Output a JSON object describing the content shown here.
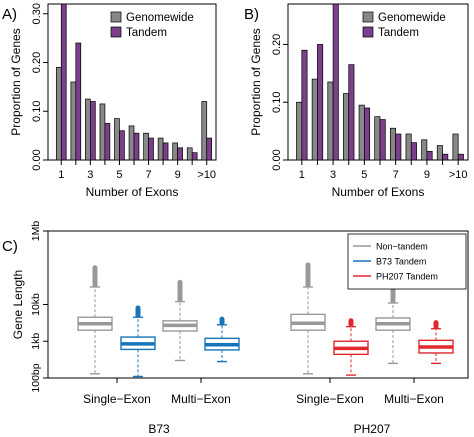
{
  "chart_data": [
    {
      "type": "bar",
      "panel_label": "A)",
      "xlabel": "Number of Exons",
      "ylabel": "Proportion of Genes",
      "ylim": [
        0,
        0.32
      ],
      "yticks": [
        "0.00",
        "0.10",
        "0.20",
        "0.30"
      ],
      "categories": [
        "1",
        "2",
        "3",
        "4",
        "5",
        "6",
        "7",
        "8",
        "9",
        "10",
        ">10"
      ],
      "xtick_labels": [
        "1",
        "3",
        "5",
        "7",
        "9",
        ">10"
      ],
      "legend": "top-right",
      "series": [
        {
          "name": "Genomewide",
          "color": "#888888",
          "values": [
            0.19,
            0.16,
            0.125,
            0.115,
            0.085,
            0.07,
            0.055,
            0.045,
            0.035,
            0.025,
            0.12
          ]
        },
        {
          "name": "Tandem",
          "color": "#7b3f8c",
          "values": [
            0.34,
            0.24,
            0.12,
            0.075,
            0.06,
            0.055,
            0.045,
            0.035,
            0.025,
            0.015,
            0.045
          ]
        }
      ]
    },
    {
      "type": "bar",
      "panel_label": "B)",
      "xlabel": "Number of Exons",
      "ylabel": "Proportion of Genes",
      "ylim": [
        0,
        0.27
      ],
      "yticks": [
        "0.00",
        "0.10",
        "0.20"
      ],
      "categories": [
        "1",
        "2",
        "3",
        "4",
        "5",
        "6",
        "7",
        "8",
        "9",
        "10",
        ">10"
      ],
      "xtick_labels": [
        "1",
        "3",
        "5",
        "7",
        "9",
        ">10"
      ],
      "legend": "top-right",
      "series": [
        {
          "name": "Genomewide",
          "color": "#888888",
          "values": [
            0.1,
            0.14,
            0.135,
            0.115,
            0.095,
            0.075,
            0.055,
            0.045,
            0.035,
            0.025,
            0.045
          ]
        },
        {
          "name": "Tandem",
          "color": "#7b3f8c",
          "values": [
            0.19,
            0.2,
            0.3,
            0.165,
            0.09,
            0.07,
            0.045,
            0.03,
            0.015,
            0.01,
            0.01
          ]
        }
      ]
    },
    {
      "type": "boxplot",
      "panel_label": "C)",
      "ylabel": "Gene Length",
      "yscale": "log",
      "yticks": [
        {
          "label": "100bp",
          "value": 100
        },
        {
          "label": "1kb",
          "value": 1000
        },
        {
          "label": "10kb",
          "value": 10000
        },
        {
          "label": "1Mb",
          "value": 1000000
        }
      ],
      "ylim": [
        100,
        1000000
      ],
      "legend": "top-right",
      "legend_items": [
        {
          "name": "Non−tandem",
          "color": "#999999"
        },
        {
          "name": "B73 Tandem",
          "color": "#1874b8"
        },
        {
          "name": "PH207 Tandem",
          "color": "#e0282e"
        }
      ],
      "group_labels": [
        "Single−Exon",
        "Multi−Exon",
        "Single−Exon",
        "Multi−Exon"
      ],
      "genotype_labels": [
        "B73",
        "PH207"
      ],
      "boxes": [
        {
          "series": "Non-tandem",
          "color": "#999999",
          "whisker_low": 130,
          "q1": 2000,
          "median": 3000,
          "q3": 4500,
          "whisker_high": 30000,
          "outliers_top": 100000
        },
        {
          "series": "B73 Tandem",
          "color": "#1874b8",
          "whisker_low": 110,
          "q1": 600,
          "median": 850,
          "q3": 1300,
          "whisker_high": 4500,
          "outliers_top": 8000
        },
        {
          "series": "Non-tandem",
          "color": "#999999",
          "whisker_low": 300,
          "q1": 1900,
          "median": 2700,
          "q3": 3600,
          "whisker_high": 12000,
          "outliers_top": 40000
        },
        {
          "series": "B73 Tandem",
          "color": "#1874b8",
          "whisker_low": 280,
          "q1": 580,
          "median": 800,
          "q3": 1200,
          "whisker_high": 2800,
          "outliers_top": 4000
        },
        {
          "series": "Non-tandem",
          "color": "#999999",
          "whisker_low": 130,
          "q1": 2000,
          "median": 3100,
          "q3": 5400,
          "whisker_high": 30000,
          "outliers_top": 120000
        },
        {
          "series": "PH207 Tandem",
          "color": "#e0282e",
          "whisker_low": 120,
          "q1": 440,
          "median": 640,
          "q3": 1000,
          "whisker_high": 2500,
          "outliers_top": 3600
        },
        {
          "series": "Non-tandem",
          "color": "#999999",
          "whisker_low": 250,
          "q1": 2000,
          "median": 3000,
          "q3": 4300,
          "whisker_high": 11000,
          "outliers_top": 38000
        },
        {
          "series": "PH207 Tandem",
          "color": "#e0282e",
          "whisker_low": 250,
          "q1": 480,
          "median": 700,
          "q3": 1060,
          "whisker_high": 2200,
          "outliers_top": 3200
        }
      ]
    }
  ]
}
